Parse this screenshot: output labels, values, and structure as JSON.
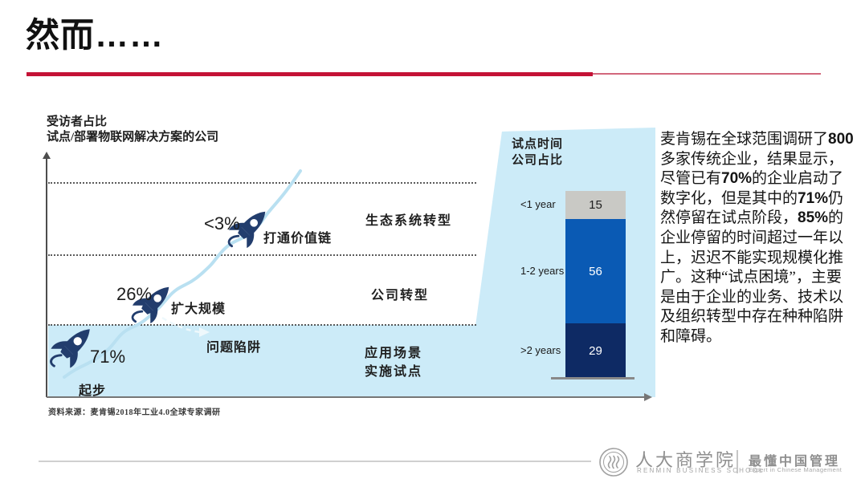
{
  "slide": {
    "title": "然而……"
  },
  "chart": {
    "axis_title_line1": "受访者占比",
    "axis_title_line2": "试点/部署物联网解决方案的公司",
    "stages": [
      {
        "pct": "71%",
        "label": "起步"
      },
      {
        "pct": "26%",
        "label": "扩大规模"
      },
      {
        "pct": "<3%",
        "label": "打通价值链"
      }
    ],
    "trap_label": "问题陷阱",
    "phase_labels": [
      "生态系统转型",
      "公司转型",
      "应用场景",
      "实施试点"
    ],
    "source": "资料来源：麦肯锡2018年工业4.0全球专家调研"
  },
  "pilot_panel": {
    "header_line1": "试点时间",
    "header_line2": "公司占比",
    "rows": [
      {
        "label": "<1 year",
        "value": 15,
        "color": "#c9c9c5",
        "text_color": "#1f1f1f"
      },
      {
        "label": "1-2 years",
        "value": 56,
        "color": "#0a5ab4",
        "text_color": "#ffffff"
      },
      {
        "label": ">2 years",
        "value": 29,
        "color": "#0e2a64",
        "text_color": "#ffffff"
      }
    ]
  },
  "commentary": {
    "segments": [
      {
        "t": "麦肯锡在全球范围调研了",
        "sans": false
      },
      {
        "t": "800",
        "sans": true
      },
      {
        "t": "多家传统企业，结果显示，尽管已有",
        "sans": false
      },
      {
        "t": "70%",
        "sans": true
      },
      {
        "t": "的企业启动了数字化，但是其中的",
        "sans": false
      },
      {
        "t": "71%",
        "sans": true
      },
      {
        "t": "仍然停留在试点阶段，",
        "sans": false
      },
      {
        "t": "85%",
        "sans": true
      },
      {
        "t": "的企业停留的时间超过一年以上，迟迟不能实现规模化推广。这种“试点困境”，主要是由于企业的业务、技术以及组织转型中存在种种陷阱和障碍。",
        "sans": false
      }
    ]
  },
  "footer": {
    "school_cn": "人大商学院",
    "school_en": "RENMIN BUSINESS SCHOOL",
    "slogan_cn": "最懂中国管理",
    "slogan_en": "Expert in Chinese Management"
  },
  "colors": {
    "accent_red": "#c41236",
    "accent_red_light": "#d2677c",
    "band_blue": "#ccebf8",
    "trail_blue": "#b9e0f1",
    "rocket_navy": "#223d6d",
    "bar_gray": "#c9c9c5",
    "bar_blue": "#0a5ab4",
    "bar_navy": "#0e2a64",
    "footer_gray": "#8f8f8f"
  },
  "chart_data": [
    {
      "type": "scatter",
      "title": "受访者占比 试点/部署物联网解决方案的公司",
      "categories": [
        "起步",
        "扩大规模",
        "打通价值链"
      ],
      "values": [
        71,
        26,
        3
      ],
      "value_labels": [
        "71%",
        "26%",
        "<3%"
      ],
      "annotations": [
        "问题陷阱",
        "生态系统转型",
        "公司转型",
        "应用场景 实施试点"
      ],
      "legend_position": "none",
      "grid": "dotted-horizontal",
      "source": "资料来源：麦肯锡2018年工业4.0全球专家调研"
    },
    {
      "type": "bar",
      "title": "试点时间 公司占比",
      "orientation": "vertical-stacked",
      "categories": [
        "<1 year",
        "1-2 years",
        ">2 years"
      ],
      "values": [
        15,
        56,
        29
      ],
      "ylim": [
        0,
        100
      ]
    }
  ]
}
